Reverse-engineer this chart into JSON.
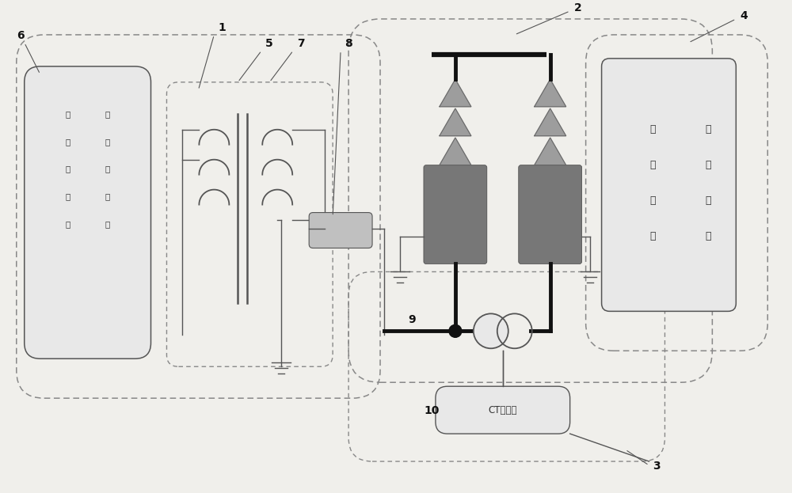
{
  "bg_color": "#f0efeb",
  "line_color": "#555555",
  "thick_line_color": "#111111",
  "mid_gray": "#808080",
  "dark_box_color": "#777777",
  "dashed_color": "#888888",
  "text_color": "#333333",
  "tri_color": "#999999",
  "tri_edge": "#666666",
  "box_fill_light": "#e8e8e8",
  "box_fill_dark": "#888888",
  "text_transformer": [
    "试",
    "验",
    "变",
    "压",
    "器"
  ],
  "text_input_adj": [
    "输",
    "入",
    "调",
    "压",
    "器"
  ],
  "text_state_detect": [
    "状",
    "态",
    "检",
    "测"
  ],
  "text_cable_acc": [
    "电",
    "缆",
    "附",
    "件"
  ],
  "text_ct": "CT调压器",
  "figsize": [
    10.0,
    6.23
  ],
  "dpi": 100
}
